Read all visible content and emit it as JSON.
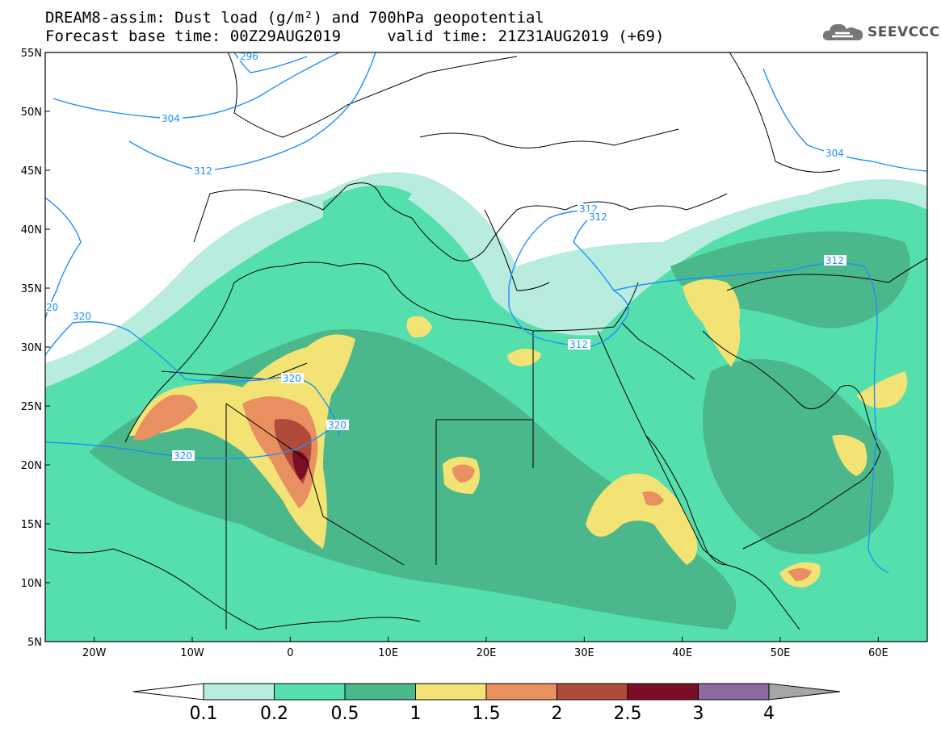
{
  "title": {
    "line1": "DREAM8-assim: Dust load (g/m²) and 700hPa geopotential",
    "line2": "Forecast base time: 00Z29AUG2019     valid time: 21Z31AUG2019 (+69)"
  },
  "logo": {
    "text": "SEEVCCC",
    "icon": "cloud-logo-icon"
  },
  "axes": {
    "lon": {
      "min": -25,
      "max": 65,
      "ticks": [
        "20W",
        "10W",
        "0",
        "10E",
        "20E",
        "30E",
        "40E",
        "50E",
        "60E"
      ],
      "tick_values": [
        -20,
        -10,
        0,
        10,
        20,
        30,
        40,
        50,
        60
      ]
    },
    "lat": {
      "min": 5,
      "max": 55,
      "ticks": [
        "5N",
        "10N",
        "15N",
        "20N",
        "25N",
        "30N",
        "35N",
        "40N",
        "45N",
        "50N",
        "55N"
      ],
      "tick_values": [
        5,
        10,
        15,
        20,
        25,
        30,
        35,
        40,
        45,
        50,
        55
      ]
    }
  },
  "contour_labels": [
    "296",
    "304",
    "312",
    "320",
    "320",
    "320",
    "320",
    "312",
    "312",
    "312",
    "312",
    "304",
    "20"
  ],
  "colorbar": {
    "labels": [
      "0.1",
      "0.2",
      "0.5",
      "1",
      "1.5",
      "2",
      "2.5",
      "3",
      "4"
    ],
    "colors": [
      "#ffffff",
      "#b8ecdf",
      "#55dfad",
      "#4ab88a",
      "#f2e374",
      "#e8905f",
      "#b04a3a",
      "#7b0d26",
      "#8c6aa1",
      "#a6a6a6"
    ]
  },
  "colors": {
    "contour": "#1e90ff",
    "border": "#000000",
    "lvl1": "#b8ecdf",
    "lvl2": "#55dfad",
    "lvl3": "#4ab88a",
    "lvl4": "#f2e374",
    "lvl5": "#e8905f",
    "lvl6": "#b04a3a",
    "lvl7": "#7b0d26"
  }
}
